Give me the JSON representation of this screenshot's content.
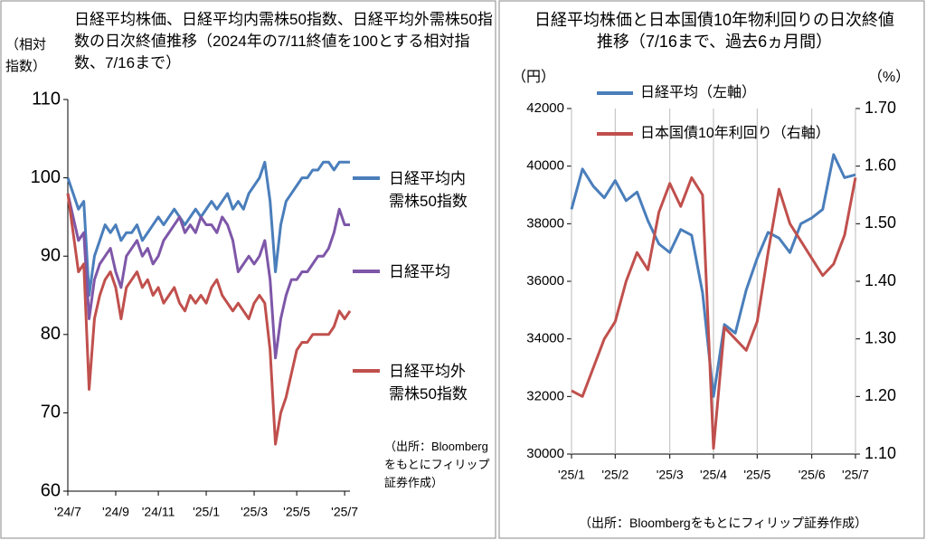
{
  "chart_data": [
    {
      "type": "line",
      "title": "日経平均株価、日経平均内需株50指数、日経平均外需株50指数の日次終値推移（2024年の7/11終値を100とする相対指数、7/16まで）",
      "ylabel": "（相対指数）",
      "note": "（出所：Bloombergをもとにフィリップ証券作成）",
      "categories": [
        "'24/7",
        null,
        null,
        null,
        null,
        null,
        null,
        null,
        null,
        "'24/9",
        null,
        null,
        null,
        null,
        null,
        null,
        null,
        "'24/11",
        null,
        null,
        null,
        null,
        null,
        null,
        null,
        null,
        "'25/1",
        null,
        null,
        null,
        null,
        null,
        null,
        null,
        null,
        "'25/3",
        null,
        null,
        null,
        null,
        null,
        null,
        null,
        "'25/5",
        null,
        null,
        null,
        null,
        null,
        null,
        null,
        null,
        "'25/7",
        null
      ],
      "ylim": [
        60,
        110
      ],
      "yticks": [
        60,
        70,
        80,
        90,
        100,
        110
      ],
      "grid": false,
      "legend": "right",
      "series": [
        {
          "name": "日経平均内需株50指数",
          "color": "#4a7ebb",
          "values": [
            100,
            98,
            96,
            97,
            85,
            90,
            92,
            94,
            93,
            94,
            92,
            93,
            93,
            94,
            92,
            93,
            94,
            95,
            94,
            95,
            96,
            95,
            94,
            95,
            96,
            95,
            96,
            97,
            96,
            97,
            98,
            96,
            97,
            96,
            98,
            99,
            100,
            102,
            97,
            88,
            94,
            97,
            98,
            99,
            100,
            100,
            101,
            101,
            102,
            102,
            101,
            102,
            102,
            102
          ]
        },
        {
          "name": "日経平均",
          "color": "#7e57a8",
          "values": [
            98,
            95,
            92,
            93,
            82,
            87,
            89,
            90,
            91,
            88,
            86,
            90,
            91,
            92,
            90,
            91,
            89,
            90,
            92,
            93,
            94,
            95,
            93,
            94,
            93,
            95,
            94,
            94,
            93,
            95,
            94,
            92,
            88,
            89,
            90,
            89,
            90,
            92,
            87,
            77,
            82,
            85,
            87,
            87,
            88,
            88,
            89,
            90,
            90,
            91,
            93,
            96,
            94,
            94
          ]
        },
        {
          "name": "日経平均外需株50指数",
          "color": "#c0504d",
          "values": [
            98,
            93,
            88,
            89,
            73,
            82,
            85,
            87,
            88,
            86,
            82,
            86,
            87,
            88,
            86,
            87,
            85,
            86,
            84,
            85,
            86,
            84,
            83,
            85,
            84,
            85,
            84,
            86,
            87,
            85,
            84,
            83,
            84,
            83,
            82,
            84,
            85,
            84,
            78,
            66,
            70,
            72,
            75,
            78,
            79,
            79,
            80,
            80,
            80,
            80,
            81,
            83,
            82,
            83
          ]
        }
      ]
    },
    {
      "type": "line",
      "title": "日経平均株価と日本国債10年物利回りの日次終値推移（7/16まで、過去6ヵ月間）",
      "ylabel": "（円）",
      "y2label": "（%）",
      "note": "（出所：Bloombergをもとにフィリップ証券作成）",
      "categories": [
        "'25/1",
        null,
        null,
        null,
        "'25/2",
        null,
        null,
        null,
        null,
        "'25/3",
        null,
        null,
        null,
        "'25/4",
        null,
        null,
        null,
        "'25/5",
        null,
        null,
        null,
        null,
        "'25/6",
        null,
        null,
        null,
        "'25/7"
      ],
      "ylim": [
        30000,
        42000
      ],
      "yticks": [
        30000,
        32000,
        34000,
        36000,
        38000,
        40000,
        42000
      ],
      "y2lim": [
        1.1,
        1.7
      ],
      "y2ticks": [
        {
          "value": 1.1,
          "label": "1.10"
        },
        {
          "value": 1.2,
          "label": "1.20"
        },
        {
          "value": 1.3,
          "label": "1.30"
        },
        {
          "value": 1.4,
          "label": "1.40"
        },
        {
          "value": 1.5,
          "label": "1.50"
        },
        {
          "value": 1.6,
          "label": "1.60"
        },
        {
          "value": 1.7,
          "label": "1.70"
        }
      ],
      "xgrid": true,
      "legend": "top",
      "series": [
        {
          "name": "日経平均（左軸）",
          "color": "#4a7ebb",
          "values": [
            38500,
            39900,
            39300,
            38900,
            39500,
            38800,
            39100,
            38100,
            37300,
            37000,
            37800,
            37600,
            35600,
            32000,
            34500,
            34200,
            35700,
            36800,
            37700,
            37500,
            37000,
            38000,
            38200,
            38500,
            40400,
            39600,
            39700
          ]
        },
        {
          "name": "日本国債10年利回り（右軸）",
          "color": "#c0504d",
          "axis": "y2",
          "values": [
            1.21,
            1.2,
            1.25,
            1.3,
            1.33,
            1.4,
            1.45,
            1.42,
            1.52,
            1.57,
            1.53,
            1.58,
            1.55,
            1.11,
            1.32,
            1.3,
            1.28,
            1.33,
            1.45,
            1.56,
            1.5,
            1.47,
            1.44,
            1.41,
            1.43,
            1.48,
            1.58
          ]
        }
      ]
    }
  ]
}
